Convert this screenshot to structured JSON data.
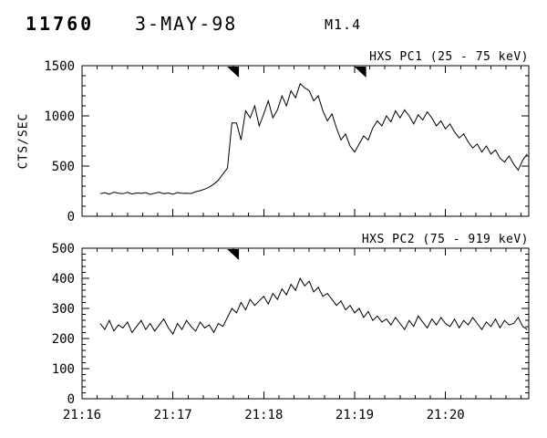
{
  "header": {
    "flare_number": "11760",
    "date": "3-MAY-98",
    "goes_class": "M1.4"
  },
  "colors": {
    "foreground": "#000000",
    "background": "#ffffff"
  },
  "x_axis": {
    "ticks": [
      {
        "t": 0,
        "label": "21:16"
      },
      {
        "t": 60,
        "label": "21:17"
      },
      {
        "t": 120,
        "label": "21:18"
      },
      {
        "t": 180,
        "label": "21:19"
      },
      {
        "t": 240,
        "label": "21:20"
      }
    ],
    "range_sec": [
      0,
      295
    ],
    "major_step_sec": 60,
    "minor_step_sec": 10
  },
  "chart_data": [
    {
      "type": "line",
      "title": "HXS PC1 (25 - 75 keV)",
      "ylabel": "CTS/SEC",
      "ylim": [
        0,
        1500
      ],
      "yticks": [
        0,
        500,
        1000,
        1500
      ],
      "y_major_step": 500,
      "y_minor_step": 100,
      "x_unit": "seconds after 21:16:00",
      "t_start_sec": 12,
      "t_step_sec": 3,
      "marker_times_sec": [
        100,
        184
      ],
      "values": [
        225,
        235,
        220,
        240,
        230,
        225,
        238,
        222,
        232,
        228,
        235,
        218,
        230,
        240,
        225,
        232,
        220,
        236,
        228,
        230,
        226,
        245,
        255,
        270,
        290,
        320,
        360,
        420,
        480,
        930,
        930,
        760,
        1050,
        980,
        1100,
        900,
        1020,
        1150,
        980,
        1060,
        1200,
        1100,
        1250,
        1180,
        1320,
        1280,
        1250,
        1150,
        1200,
        1050,
        950,
        1020,
        880,
        760,
        820,
        700,
        640,
        720,
        800,
        760,
        880,
        950,
        900,
        1000,
        940,
        1050,
        980,
        1060,
        1000,
        920,
        1010,
        960,
        1040,
        980,
        900,
        950,
        870,
        920,
        840,
        780,
        820,
        740,
        680,
        720,
        640,
        700,
        620,
        660,
        580,
        540,
        600,
        520,
        460,
        560,
        620
      ]
    },
    {
      "type": "line",
      "title": "HXS PC2 (75 - 919 keV)",
      "ylabel": "",
      "ylim": [
        0,
        500
      ],
      "yticks": [
        0,
        100,
        200,
        300,
        400,
        500
      ],
      "y_major_step": 100,
      "y_minor_step": 20,
      "x_unit": "seconds after 21:16:00",
      "t_start_sec": 12,
      "t_step_sec": 3,
      "marker_times_sec": [
        100
      ],
      "values": [
        250,
        230,
        260,
        225,
        245,
        235,
        255,
        220,
        240,
        260,
        230,
        250,
        225,
        245,
        265,
        235,
        215,
        250,
        230,
        260,
        240,
        225,
        255,
        235,
        245,
        220,
        250,
        240,
        270,
        300,
        285,
        320,
        295,
        330,
        310,
        325,
        340,
        315,
        350,
        330,
        365,
        345,
        380,
        360,
        400,
        375,
        390,
        355,
        370,
        340,
        350,
        330,
        310,
        325,
        295,
        310,
        285,
        300,
        270,
        290,
        260,
        275,
        255,
        265,
        245,
        270,
        250,
        230,
        260,
        240,
        275,
        255,
        235,
        265,
        245,
        270,
        250,
        240,
        265,
        235,
        260,
        245,
        270,
        250,
        230,
        255,
        240,
        265,
        235,
        260,
        245,
        250,
        270,
        240,
        230
      ]
    }
  ]
}
